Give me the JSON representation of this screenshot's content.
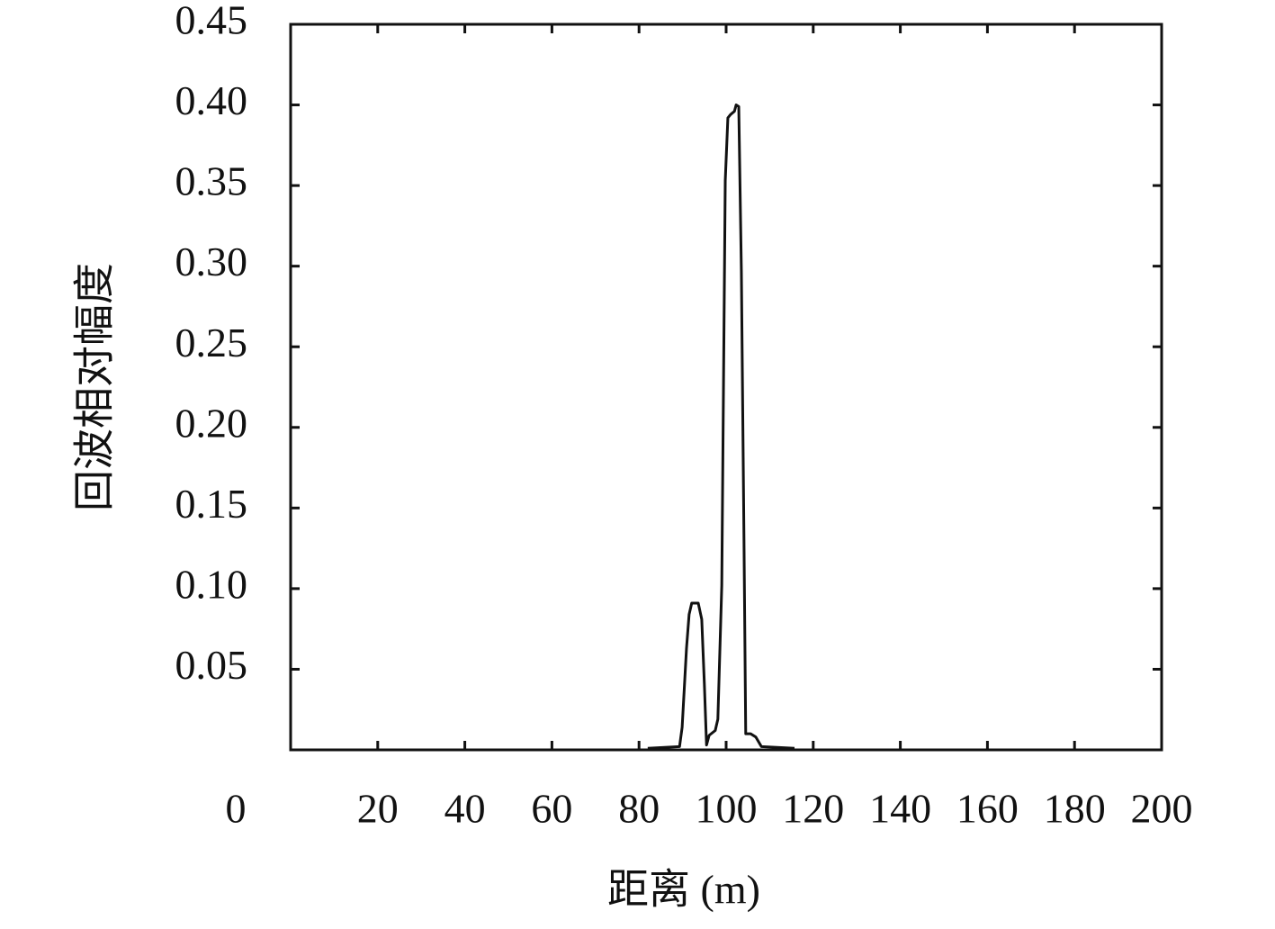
{
  "chart_data": {
    "type": "line",
    "xlabel": "距离 (m)",
    "ylabel": "回波相对幅度",
    "xlim": [
      0,
      200
    ],
    "ylim": [
      0,
      0.45
    ],
    "xticks": [
      0,
      20,
      40,
      60,
      80,
      100,
      120,
      140,
      160,
      180,
      200
    ],
    "yticks": [
      {
        "value": 0.05,
        "label": "0.05"
      },
      {
        "value": 0.1,
        "label": "0.10"
      },
      {
        "value": 0.15,
        "label": "0.15"
      },
      {
        "value": 0.2,
        "label": "0.20"
      },
      {
        "value": 0.25,
        "label": "0.25"
      },
      {
        "value": 0.3,
        "label": "0.30"
      },
      {
        "value": 0.35,
        "label": "0.35"
      },
      {
        "value": 0.4,
        "label": "0.40"
      },
      {
        "value": 0.45,
        "label": "0.45"
      }
    ],
    "grid": false,
    "series": [
      {
        "color": "#111111",
        "x": [
          82,
          89.3,
          89.9,
          90.9,
          91.5,
          92.1,
          93.6,
          94.4,
          95.0,
          95.5,
          96.1,
          97.5,
          98.1,
          99.0,
          99.8,
          100.4,
          101.0,
          101.9,
          102.3,
          102.9,
          103.5,
          104.1,
          104.5,
          105.6,
          106.8,
          108.1,
          115.7
        ],
        "values": [
          0.001,
          0.002,
          0.014,
          0.063,
          0.084,
          0.091,
          0.091,
          0.081,
          0.041,
          0.003,
          0.009,
          0.012,
          0.019,
          0.102,
          0.353,
          0.392,
          0.394,
          0.396,
          0.4,
          0.399,
          0.297,
          0.13,
          0.01,
          0.01,
          0.008,
          0.002,
          0.001
        ]
      }
    ]
  }
}
